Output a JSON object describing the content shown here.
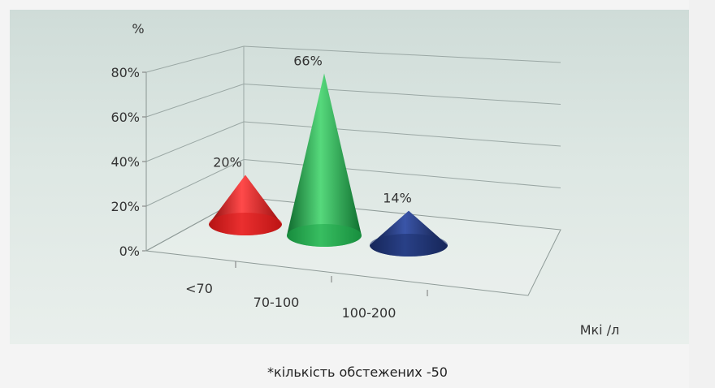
{
  "chart_data": {
    "type": "bar",
    "shape": "cone",
    "categories": [
      "<70",
      "70-100",
      "100-200"
    ],
    "values": [
      20,
      66,
      14
    ],
    "data_labels": [
      "20%",
      "66%",
      "14%"
    ],
    "ylim": [
      0,
      80
    ],
    "y_ticks": [
      "0%",
      "20%",
      "40%",
      "60%",
      "80%"
    ],
    "ylabel": "%",
    "xlabel": "Мкі /л",
    "grid": true,
    "colors": [
      "#d81a1a",
      "#1fa84a",
      "#1c2f6b"
    ]
  },
  "footnote": "*кількість обстежених -50"
}
